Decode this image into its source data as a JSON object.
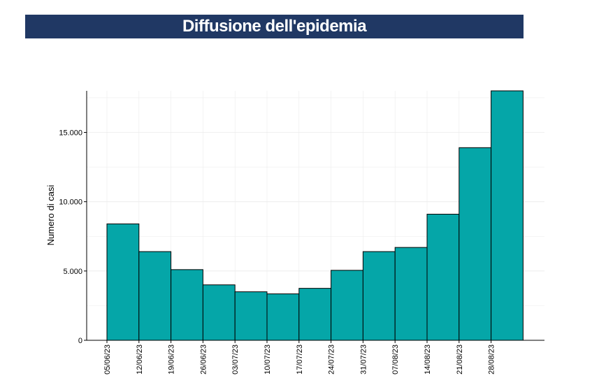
{
  "title": "Diffusione dell'epidemia",
  "colors": {
    "title_bg": "#203864",
    "bar_fill": "#05A6A8",
    "bar_stroke": "#000000",
    "grid": "#EBEBEB"
  },
  "chart_data": {
    "type": "bar",
    "title": "Diffusione dell'epidemia",
    "xlabel": "",
    "ylabel": "Numero di casi",
    "categories": [
      "05/06/23",
      "12/06/23",
      "19/06/23",
      "26/06/23",
      "03/07/23",
      "10/07/23",
      "17/07/23",
      "24/07/23",
      "31/07/23",
      "07/08/23",
      "14/08/23",
      "21/08/23",
      "28/08/23"
    ],
    "values": [
      8400,
      6400,
      5100,
      4000,
      3500,
      3350,
      3750,
      5050,
      6400,
      6700,
      9100,
      13900,
      18000
    ],
    "yticks": [
      0,
      5000,
      10000,
      15000
    ],
    "ytick_labels": [
      "0",
      "5.000",
      "10.000",
      "15.000"
    ],
    "ylim": [
      0,
      18000
    ],
    "grid": true,
    "legend": "none"
  }
}
